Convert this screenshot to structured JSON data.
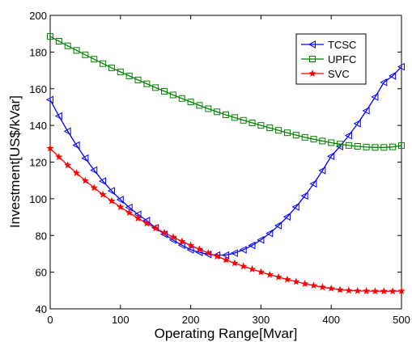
{
  "chart_data": {
    "type": "line",
    "title": "",
    "xlabel": "Operating Range[Mvar]",
    "ylabel": "Investment[US$/kVar]",
    "xlim": [
      0,
      500
    ],
    "ylim": [
      40,
      200
    ],
    "xticks": [
      0,
      100,
      200,
      300,
      400,
      500
    ],
    "yticks": [
      40,
      60,
      80,
      100,
      120,
      140,
      160,
      180,
      200
    ],
    "grid": false,
    "legend_position": "top-right",
    "series": [
      {
        "name": "TCSC",
        "color": "#0000ff",
        "marker": "triangle-left",
        "x": [
          0,
          12.5,
          25,
          37.5,
          50,
          62.5,
          75,
          87.5,
          100,
          112.5,
          125,
          137.5,
          150,
          162.5,
          175,
          187.5,
          200,
          212.5,
          225,
          237.5,
          250,
          262.5,
          275,
          287.5,
          300,
          312.5,
          325,
          337.5,
          350,
          362.5,
          375,
          387.5,
          400,
          412.5,
          425,
          437.5,
          450,
          462.5,
          475,
          487.5,
          500
        ],
        "y": [
          154,
          145.1,
          136.8,
          129.2,
          122.1,
          115.6,
          109.6,
          104.3,
          99.5,
          95.3,
          91.5,
          88.1,
          84.2,
          80.7,
          77.5,
          74.7,
          72.2,
          70.8,
          69.7,
          69.3,
          69.3,
          70.4,
          72.2,
          74.6,
          77.6,
          81.2,
          85.4,
          90.2,
          95.6,
          101.6,
          108.2,
          115.4,
          123.2,
          128.5,
          134.5,
          141,
          148,
          155.5,
          163.5,
          167,
          172
        ]
      },
      {
        "name": "UPFC",
        "color": "#008000",
        "marker": "square",
        "x": [
          0,
          12.5,
          25,
          37.5,
          50,
          62.5,
          75,
          87.5,
          100,
          112.5,
          125,
          137.5,
          150,
          162.5,
          175,
          187.5,
          200,
          212.5,
          225,
          237.5,
          250,
          262.5,
          275,
          287.5,
          300,
          312.5,
          325,
          337.5,
          350,
          362.5,
          375,
          387.5,
          400,
          412.5,
          425,
          437.5,
          450,
          462.5,
          475,
          487.5,
          500
        ],
        "y": [
          188.5,
          185.9,
          183.4,
          180.9,
          178.5,
          176.1,
          173.7,
          171.4,
          169.2,
          167,
          164.8,
          162.7,
          160.6,
          158.6,
          156.6,
          154.7,
          152.8,
          150.9,
          149.1,
          147.4,
          145.8,
          144.3,
          142.8,
          141.4,
          140,
          138.7,
          137.3,
          136,
          134.7,
          133.5,
          132.5,
          131.5,
          130.6,
          129.8,
          129.1,
          128.6,
          128.2,
          128,
          128,
          128.3,
          129
        ]
      },
      {
        "name": "SVC",
        "color": "#ff0000",
        "marker": "star",
        "x": [
          0,
          12.5,
          25,
          37.5,
          50,
          62.5,
          75,
          87.5,
          100,
          112.5,
          125,
          137.5,
          150,
          162.5,
          175,
          187.5,
          200,
          212.5,
          225,
          237.5,
          250,
          262.5,
          275,
          287.5,
          300,
          312.5,
          325,
          337.5,
          350,
          362.5,
          375,
          387.5,
          400,
          412.5,
          425,
          437.5,
          450,
          462.5,
          475,
          487.5,
          500
        ],
        "y": [
          127.5,
          122.8,
          118.3,
          114,
          109.9,
          106,
          102.3,
          98.8,
          95.5,
          92.4,
          89.4,
          86.6,
          84,
          81.5,
          79.1,
          76.8,
          74.6,
          72.5,
          70.5,
          68.6,
          66.7,
          64.9,
          63.2,
          61.6,
          60.1,
          58.6,
          57.3,
          56,
          54.8,
          53.7,
          52.7,
          51.8,
          51.1,
          50.4,
          50,
          49.8,
          49.7,
          49.6,
          49.6,
          49.6,
          49.7
        ]
      }
    ]
  }
}
